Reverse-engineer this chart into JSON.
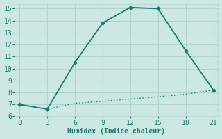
{
  "line1_x": [
    0,
    3,
    6,
    9,
    12,
    15,
    18,
    21
  ],
  "line1_y": [
    7.0,
    6.6,
    10.5,
    13.8,
    15.1,
    15.0,
    11.5,
    8.2
  ],
  "line2_x": [
    0,
    3,
    6,
    9,
    12,
    15,
    18,
    21
  ],
  "line2_y": [
    7.0,
    6.6,
    7.1,
    7.25,
    7.45,
    7.65,
    7.85,
    8.2
  ],
  "line_color": "#1a7a6e",
  "bg_color": "#cce8e4",
  "grid_color": "#b0d4ce",
  "xlabel": "Humidex (Indice chaleur)",
  "xlim": [
    -0.5,
    21.5
  ],
  "ylim": [
    6,
    15.4
  ],
  "xticks": [
    0,
    3,
    6,
    9,
    12,
    15,
    18,
    21
  ],
  "yticks": [
    6,
    7,
    8,
    9,
    10,
    11,
    12,
    13,
    14,
    15
  ],
  "xlabel_fontsize": 7,
  "tick_fontsize": 7,
  "marker": "D",
  "marker_size": 2.5,
  "linewidth_solid": 1.3,
  "linewidth_dotted": 1.0
}
